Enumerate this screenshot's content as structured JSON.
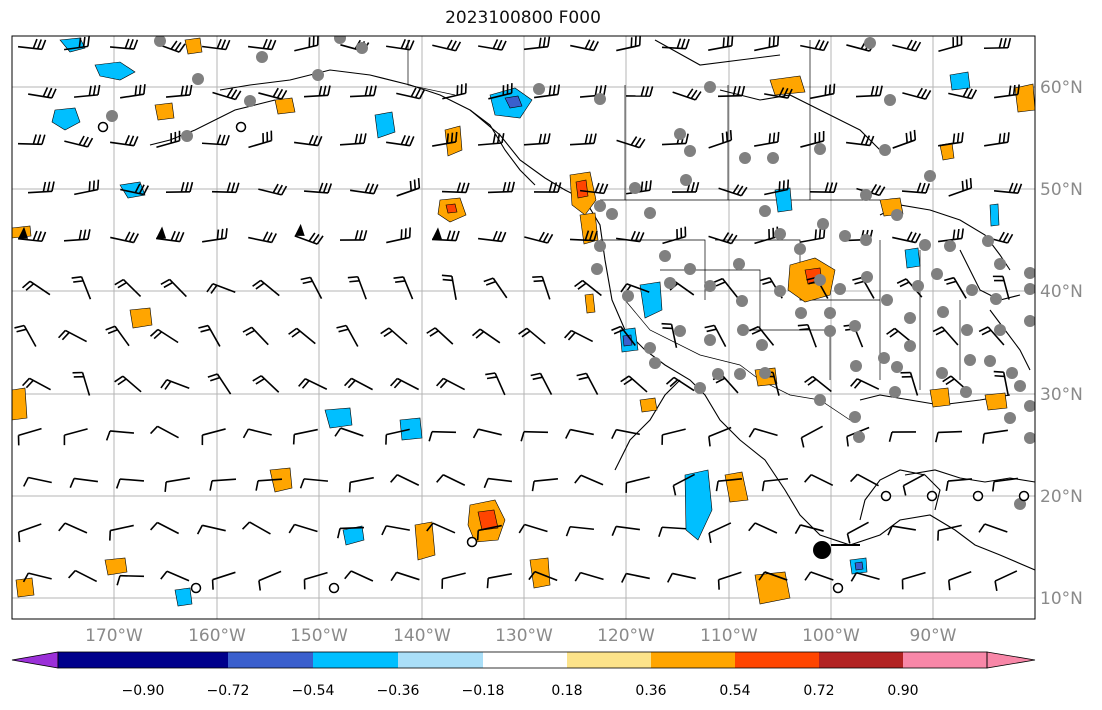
{
  "title": "2023100800 F000",
  "map": {
    "lon_ticks": [
      "170°W",
      "160°W",
      "150°W",
      "140°W",
      "130°W",
      "120°W",
      "110°W",
      "100°W",
      "90°W"
    ],
    "lat_ticks": [
      "60°N",
      "50°N",
      "40°N",
      "30°N",
      "20°N",
      "10°N"
    ]
  },
  "colorbar": {
    "colors": [
      "#9b30d8",
      "#00008b",
      "#3a5fcd",
      "#00bfff",
      "#aadff8",
      "#ffffff",
      "#fce38a",
      "#ffa500",
      "#ff4500",
      "#b22222",
      "#f887a8"
    ],
    "labels": [
      "−0.90",
      "−0.72",
      "−0.54",
      "−0.36",
      "−0.18",
      "0.18",
      "0.36",
      "0.54",
      "0.72",
      "0.90"
    ]
  },
  "field_colors": {
    "negative_light": "#00bfff",
    "negative_dark": "#3a5fcd",
    "positive_light": "#ffa500",
    "positive_dark": "#ff4500",
    "station": "#808080",
    "land": "#000000"
  }
}
